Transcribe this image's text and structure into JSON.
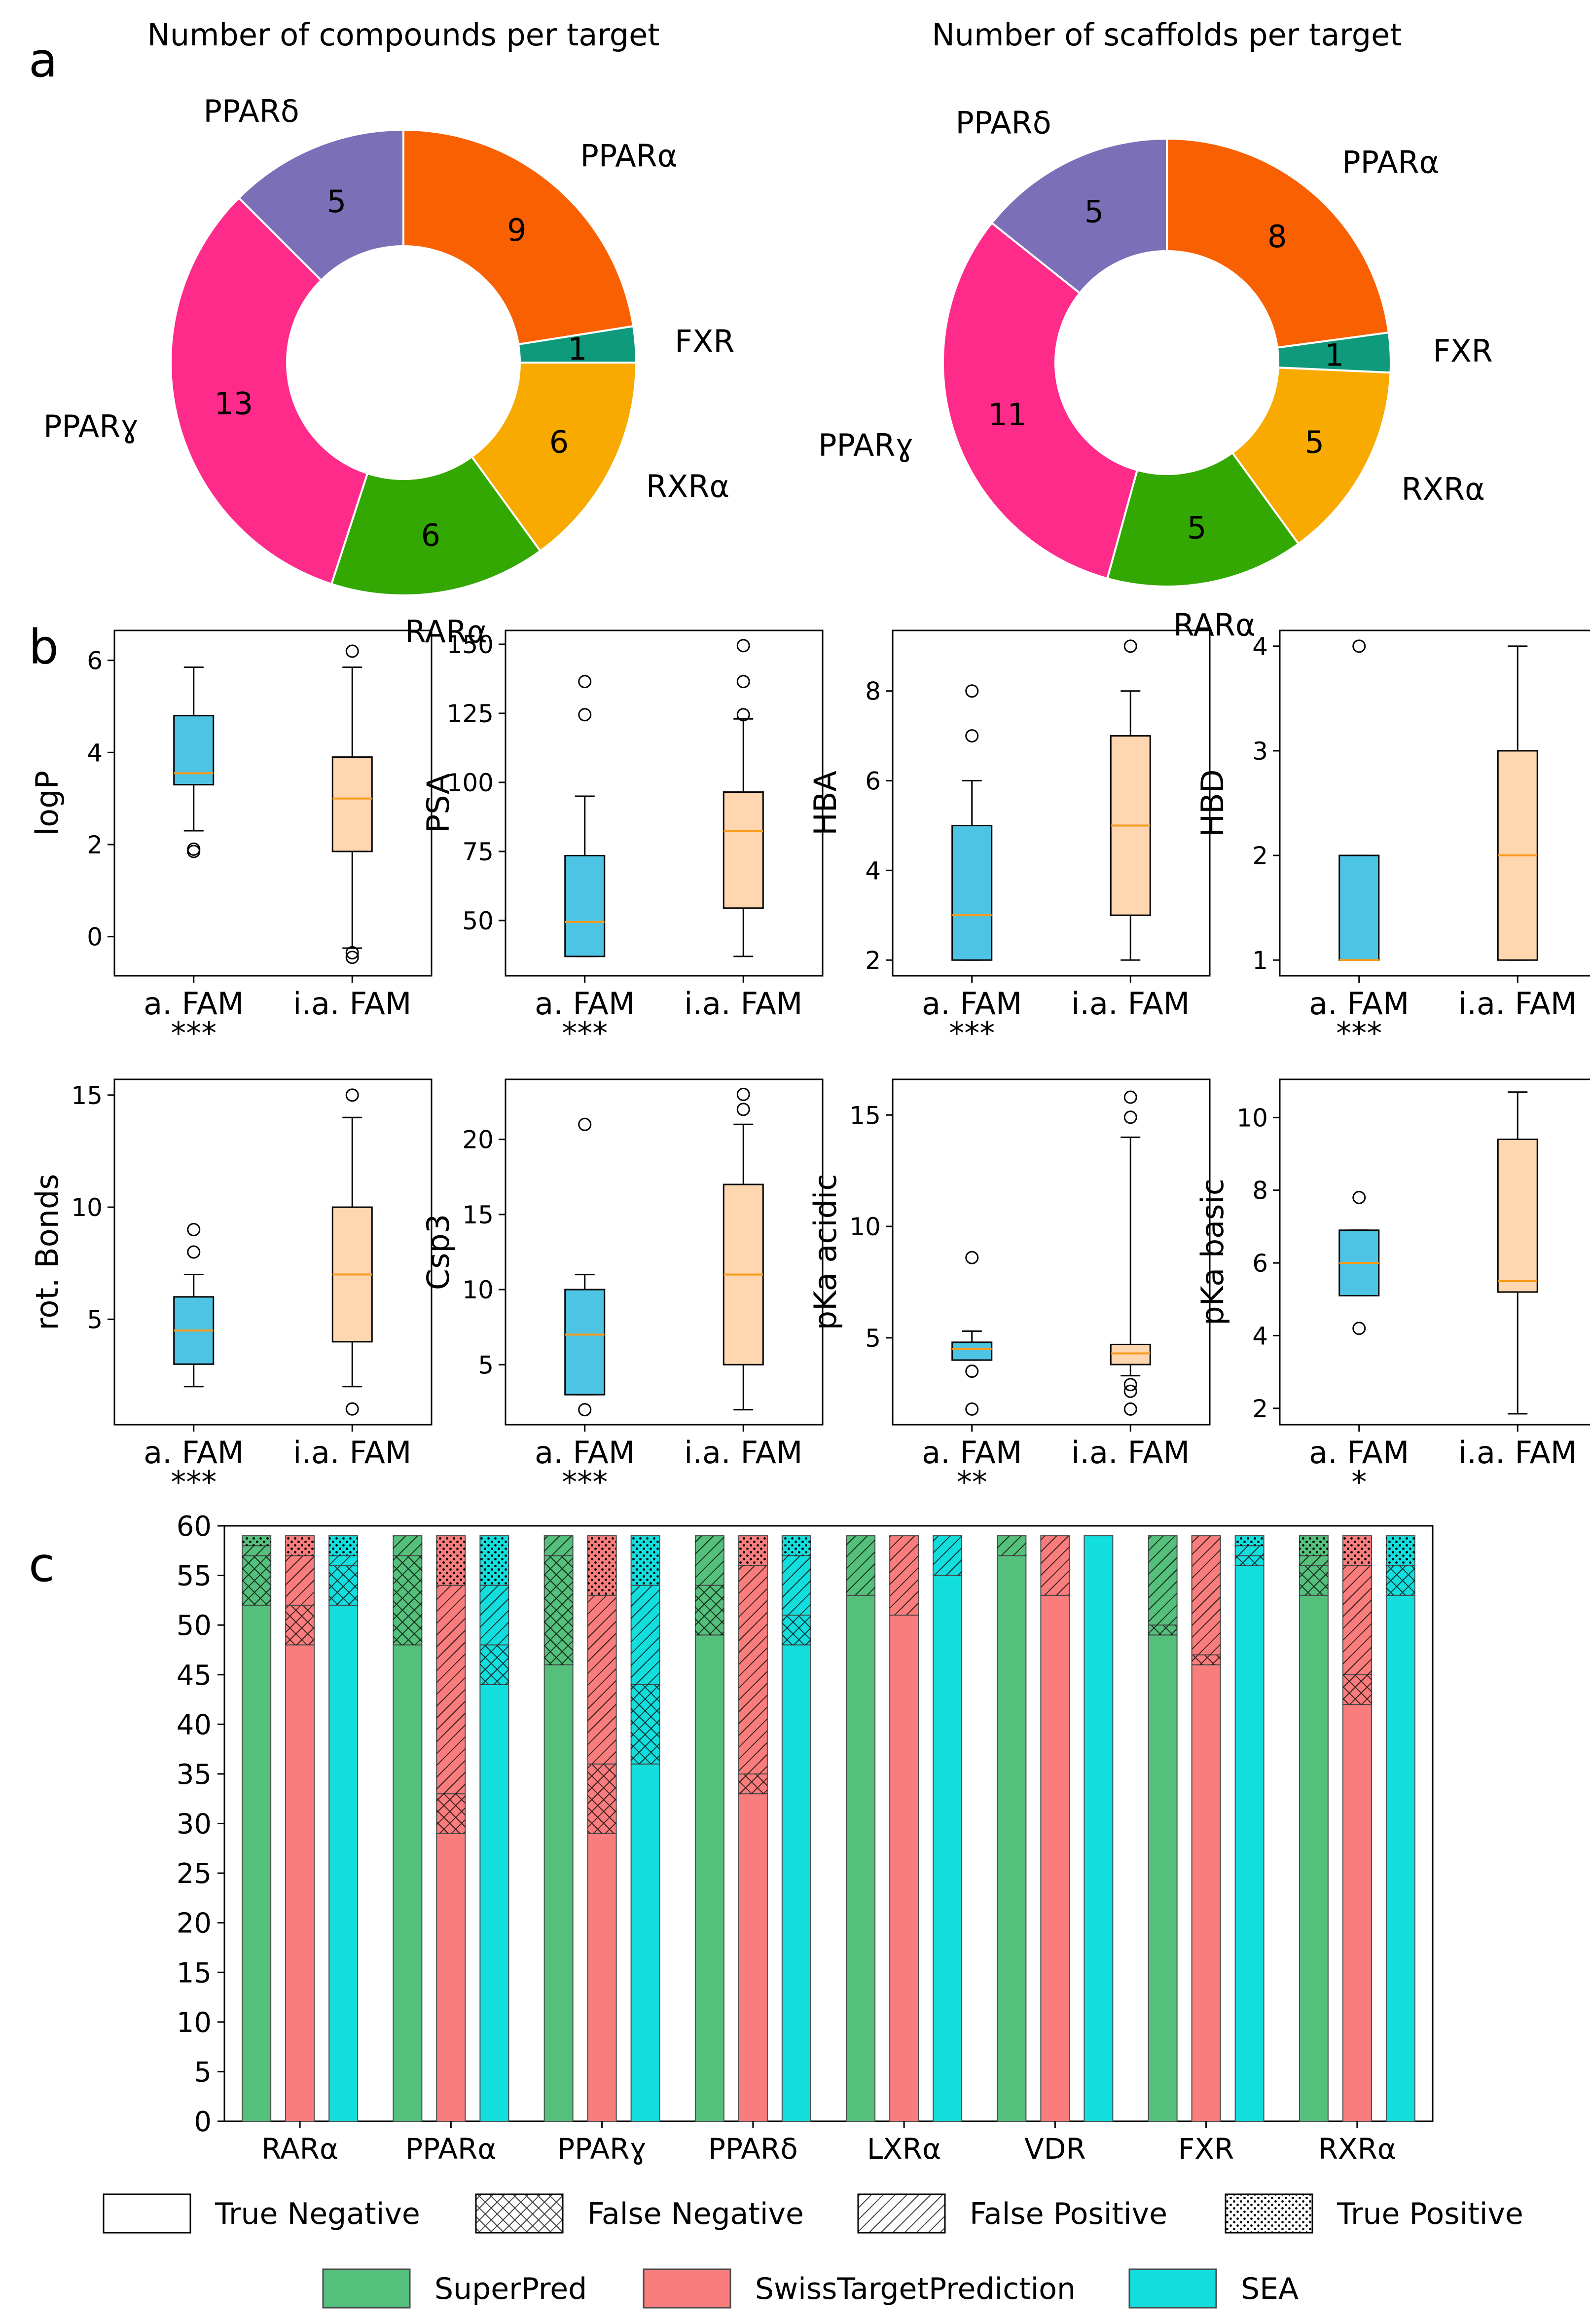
{
  "panel_labels": [
    "a",
    "b",
    "c"
  ],
  "chart_data": [
    {
      "type": "pie",
      "donut": true,
      "title": "Number of compounds per target",
      "slices": [
        {
          "label": "PPARα",
          "value": 9,
          "color": "#f96002"
        },
        {
          "label": "FXR",
          "value": 1,
          "color": "#0f9b7b"
        },
        {
          "label": "RXRα",
          "value": 6,
          "color": "#f8aa01"
        },
        {
          "label": "RARα",
          "value": 6,
          "color": "#33a702"
        },
        {
          "label": "PPARɣ",
          "value": 13,
          "color": "#fe2b8b"
        },
        {
          "label": "PPARδ",
          "value": 5,
          "color": "#7b70b7"
        }
      ]
    },
    {
      "type": "pie",
      "donut": true,
      "title": "Number of scaffolds per target",
      "slices": [
        {
          "label": "PPARα",
          "value": 8,
          "color": "#f96002"
        },
        {
          "label": "FXR",
          "value": 1,
          "color": "#0f9b7b"
        },
        {
          "label": "RXRα",
          "value": 5,
          "color": "#f8aa01"
        },
        {
          "label": "RARα",
          "value": 5,
          "color": "#33a702"
        },
        {
          "label": "PPARɣ",
          "value": 11,
          "color": "#fe2b8b"
        },
        {
          "label": "PPARδ",
          "value": 5,
          "color": "#7b70b7"
        }
      ]
    },
    {
      "type": "box",
      "ylabel": "logP",
      "categories": [
        "a. FAM",
        "i.a. FAM"
      ],
      "significance": "***",
      "ylim": [
        -0.85,
        6.65
      ],
      "ticks": [
        0,
        2,
        4,
        6
      ],
      "boxes": [
        {
          "whislo": 2.3,
          "q1": 3.3,
          "med": 3.55,
          "q3": 4.8,
          "whishi": 5.85,
          "fliers": [
            1.85,
            1.9
          ]
        },
        {
          "whislo": -0.25,
          "q1": 1.85,
          "med": 3.0,
          "q3": 3.9,
          "whishi": 5.85,
          "fliers": [
            -0.35,
            -0.45,
            6.2
          ]
        }
      ]
    },
    {
      "type": "box",
      "ylabel": "PSA",
      "categories": [
        "a. FAM",
        "i.a. FAM"
      ],
      "significance": "***",
      "ylim": [
        30,
        155
      ],
      "ticks": [
        50,
        75,
        100,
        125,
        150
      ],
      "boxes": [
        {
          "whislo": 37,
          "q1": 37,
          "med": 49.5,
          "q3": 73.5,
          "whishi": 95,
          "fliers": [
            124.5,
            136.5
          ]
        },
        {
          "whislo": 37,
          "q1": 54.5,
          "med": 82.5,
          "q3": 96.5,
          "whishi": 123,
          "fliers": [
            124.5,
            136.5,
            149.5
          ]
        }
      ]
    },
    {
      "type": "box",
      "ylabel": "HBA",
      "categories": [
        "a. FAM",
        "i.a. FAM"
      ],
      "significance": "***",
      "ylim": [
        1.65,
        9.35
      ],
      "ticks": [
        2,
        4,
        6,
        8
      ],
      "boxes": [
        {
          "whislo": 2,
          "q1": 2,
          "med": 3,
          "q3": 5,
          "whishi": 6,
          "fliers": [
            7,
            8
          ]
        },
        {
          "whislo": 2,
          "q1": 3,
          "med": 5,
          "q3": 7,
          "whishi": 8,
          "fliers": [
            9
          ]
        }
      ]
    },
    {
      "type": "box",
      "ylabel": "HBD",
      "categories": [
        "a. FAM",
        "i.a. FAM"
      ],
      "significance": "***",
      "ylim": [
        0.85,
        4.15
      ],
      "ticks": [
        1,
        2,
        3,
        4
      ],
      "boxes": [
        {
          "whislo": 1,
          "q1": 1,
          "med": 1,
          "q3": 2,
          "whishi": 2,
          "fliers": [
            4
          ]
        },
        {
          "whislo": 1,
          "q1": 1,
          "med": 2,
          "q3": 3,
          "whishi": 4,
          "fliers": []
        }
      ]
    },
    {
      "type": "box",
      "ylabel": "rot. Bonds",
      "categories": [
        "a. FAM",
        "i.a. FAM"
      ],
      "significance": "***",
      "ylim": [
        0.3,
        15.7
      ],
      "ticks": [
        5,
        10,
        15
      ],
      "boxes": [
        {
          "whislo": 2,
          "q1": 3,
          "med": 4.5,
          "q3": 6,
          "whishi": 7,
          "fliers": [
            8,
            9
          ]
        },
        {
          "whislo": 2,
          "q1": 4,
          "med": 7,
          "q3": 10,
          "whishi": 14,
          "fliers": [
            1,
            15
          ]
        }
      ]
    },
    {
      "type": "box",
      "ylabel": "Csp3",
      "categories": [
        "a. FAM",
        "i.a. FAM"
      ],
      "significance": "***",
      "ylim": [
        1.0,
        24.0
      ],
      "ticks": [
        5,
        10,
        15,
        20
      ],
      "boxes": [
        {
          "whislo": 3,
          "q1": 3,
          "med": 7,
          "q3": 10,
          "whishi": 11,
          "fliers": [
            2,
            21
          ]
        },
        {
          "whislo": 2,
          "q1": 5,
          "med": 11,
          "q3": 17,
          "whishi": 21,
          "fliers": [
            22,
            23
          ]
        }
      ]
    },
    {
      "type": "box",
      "ylabel": "pKa acidic",
      "categories": [
        "a. FAM",
        "i.a. FAM"
      ],
      "significance": "**",
      "ylim": [
        1.1,
        16.6
      ],
      "ticks": [
        5,
        10,
        15
      ],
      "boxes": [
        {
          "whislo": 4.0,
          "q1": 4.0,
          "med": 4.5,
          "q3": 4.8,
          "whishi": 5.3,
          "fliers": [
            1.8,
            3.5,
            8.6
          ]
        },
        {
          "whislo": 3.3,
          "q1": 3.8,
          "med": 4.3,
          "q3": 4.7,
          "whishi": 14.0,
          "fliers": [
            1.8,
            2.6,
            2.9,
            14.9,
            15.8
          ]
        }
      ]
    },
    {
      "type": "box",
      "ylabel": "pKa basic",
      "categories": [
        "a. FAM",
        "i.a. FAM"
      ],
      "significance": "*",
      "ylim": [
        1.55,
        11.05
      ],
      "ticks": [
        2,
        4,
        6,
        8,
        10
      ],
      "boxes": [
        {
          "whislo": 5.1,
          "q1": 5.1,
          "med": 6.0,
          "q3": 6.9,
          "whishi": 6.9,
          "fliers": [
            4.2,
            7.8
          ]
        },
        {
          "whislo": 1.85,
          "q1": 5.2,
          "med": 5.5,
          "q3": 9.4,
          "whishi": 10.7,
          "fliers": []
        }
      ]
    },
    {
      "type": "bar",
      "stacked": true,
      "categories": [
        "RARα",
        "PPARα",
        "PPARɣ",
        "PPARδ",
        "LXRα",
        "VDR",
        "FXR",
        "RXRα"
      ],
      "series_names": [
        "SuperPred",
        "SwissTargetPrediction",
        "SEA"
      ],
      "series_colors": [
        "#55bf7c",
        "#f97d7d",
        "#12dede"
      ],
      "segment_order": [
        "True Negative",
        "False Negative",
        "False Positive",
        "True Positive"
      ],
      "ylim": [
        0,
        60
      ],
      "ticks": [
        0,
        5,
        10,
        15,
        20,
        25,
        30,
        35,
        40,
        45,
        50,
        55,
        60
      ],
      "values": [
        [
          [
            52,
            5,
            1,
            1
          ],
          [
            48,
            4,
            5,
            2
          ],
          [
            52,
            4,
            1,
            2
          ]
        ],
        [
          [
            48,
            9,
            2,
            0
          ],
          [
            29,
            4,
            21,
            5
          ],
          [
            44,
            4,
            6,
            5
          ]
        ],
        [
          [
            46,
            11,
            2,
            0
          ],
          [
            29,
            7,
            17,
            6
          ],
          [
            36,
            8,
            10,
            5
          ]
        ],
        [
          [
            49,
            5,
            5,
            0
          ],
          [
            33,
            2,
            21,
            3
          ],
          [
            48,
            3,
            6,
            2
          ]
        ],
        [
          [
            53,
            0,
            6,
            0
          ],
          [
            51,
            0,
            8,
            0
          ],
          [
            55,
            0,
            4,
            0
          ]
        ],
        [
          [
            57,
            0,
            2,
            0
          ],
          [
            53,
            0,
            6,
            0
          ],
          [
            59,
            0,
            0,
            0
          ]
        ],
        [
          [
            49,
            1,
            9,
            0
          ],
          [
            46,
            1,
            12,
            0
          ],
          [
            56,
            1,
            1,
            1
          ]
        ],
        [
          [
            53,
            3,
            1,
            2
          ],
          [
            42,
            3,
            11,
            3
          ],
          [
            53,
            3,
            0,
            3
          ]
        ]
      ],
      "legend_patterns": [
        {
          "label": "True Negative",
          "pattern": "none"
        },
        {
          "label": "False Negative",
          "pattern": "cross"
        },
        {
          "label": "False Positive",
          "pattern": "diag"
        },
        {
          "label": "True Positive",
          "pattern": "dots"
        }
      ],
      "legend_colors": [
        {
          "label": "SuperPred",
          "color": "#55bf7c"
        },
        {
          "label": "SwissTargetPrediction",
          "color": "#f97d7d"
        },
        {
          "label": "SEA",
          "color": "#12dede"
        }
      ]
    }
  ],
  "box_colors": [
    "#4ec4e4",
    "#fed7b1"
  ],
  "median_color": "#f99a1a"
}
